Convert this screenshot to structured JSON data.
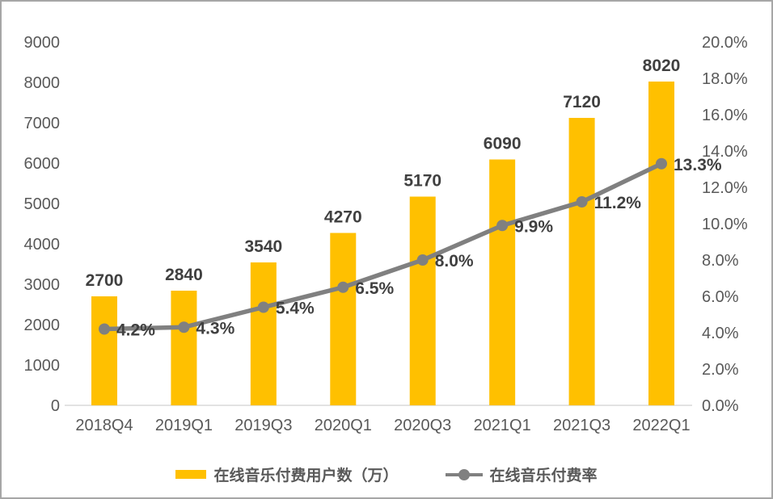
{
  "chart_data": {
    "type": "bar+line combo",
    "categories": [
      "2018Q4",
      "2019Q1",
      "2019Q3",
      "2020Q1",
      "2020Q3",
      "2021Q1",
      "2021Q3",
      "2022Q1"
    ],
    "series": [
      {
        "name": "在线音乐付费用户数（万）",
        "type": "bar",
        "axis": "left",
        "color": "#FFC000",
        "values": [
          2700,
          2840,
          3540,
          4270,
          5170,
          6090,
          7120,
          8020
        ],
        "labels": [
          "2700",
          "2840",
          "3540",
          "4270",
          "5170",
          "6090",
          "7120",
          "8020"
        ]
      },
      {
        "name": "在线音乐付费率",
        "type": "line",
        "axis": "right",
        "color": "#808080",
        "values": [
          4.2,
          4.3,
          5.4,
          6.5,
          8.0,
          9.9,
          11.2,
          13.3
        ],
        "labels": [
          "4.2%",
          "4.3%",
          "5.4%",
          "6.5%",
          "8.0%",
          "9.9%",
          "11.2%",
          "13.3%"
        ]
      }
    ],
    "left_axis": {
      "min": 0,
      "max": 9000,
      "step": 1000,
      "ticks": [
        "9000",
        "8000",
        "7000",
        "6000",
        "5000",
        "4000",
        "3000",
        "2000",
        "1000",
        "0"
      ]
    },
    "right_axis": {
      "min": 0,
      "max": 20,
      "step": 2,
      "ticks": [
        "20.0%",
        "18.0%",
        "16.0%",
        "14.0%",
        "12.0%",
        "10.0%",
        "8.0%",
        "6.0%",
        "4.0%",
        "2.0%",
        "0.0%"
      ]
    },
    "grid": false,
    "legend_position": "bottom",
    "data_label_color": "#404040",
    "tick_label_color": "#595959",
    "axis_line_color": "#d9d9d9",
    "frame_border_color": "#a6a6a6"
  }
}
